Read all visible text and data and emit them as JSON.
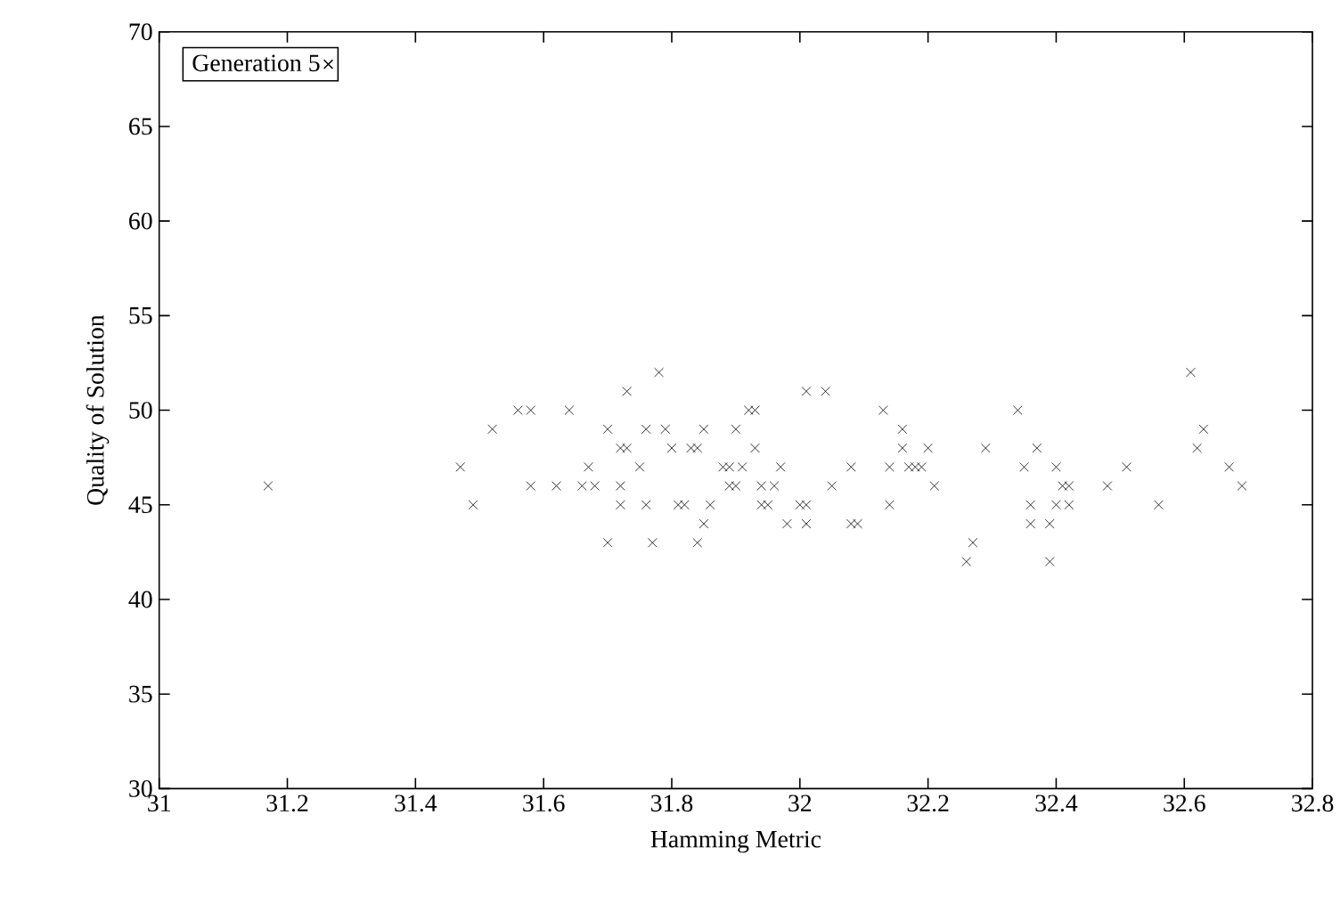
{
  "chart_data": {
    "type": "scatter",
    "xlabel": "Hamming Metric",
    "ylabel": "Quality of Solution",
    "xlim": [
      31,
      32.8
    ],
    "ylim": [
      30,
      70
    ],
    "xticks": [
      31,
      31.2,
      31.4,
      31.6,
      31.8,
      32,
      32.2,
      32.4,
      32.6,
      32.8
    ],
    "yticks": [
      30,
      35,
      40,
      45,
      50,
      55,
      60,
      65,
      70
    ],
    "legend": "top left",
    "marker": "cross",
    "grid": false,
    "series": [
      {
        "name": "Generation 5",
        "color": "#000000",
        "x": [
          31.17,
          31.47,
          31.49,
          31.52,
          31.56,
          31.58,
          31.58,
          31.62,
          31.64,
          31.66,
          31.67,
          31.68,
          31.7,
          31.7,
          31.72,
          31.72,
          31.72,
          31.73,
          31.73,
          31.75,
          31.76,
          31.76,
          31.77,
          31.78,
          31.79,
          31.8,
          31.81,
          31.82,
          31.83,
          31.84,
          31.84,
          31.85,
          31.85,
          31.86,
          31.88,
          31.89,
          31.89,
          31.9,
          31.9,
          31.91,
          31.92,
          31.93,
          31.93,
          31.94,
          31.94,
          31.95,
          31.96,
          31.97,
          31.98,
          32.0,
          32.01,
          32.01,
          32.01,
          32.04,
          32.05,
          32.08,
          32.08,
          32.09,
          32.13,
          32.14,
          32.14,
          32.16,
          32.16,
          32.17,
          32.18,
          32.19,
          32.2,
          32.21,
          32.26,
          32.27,
          32.29,
          32.34,
          32.35,
          32.36,
          32.36,
          32.37,
          32.39,
          32.39,
          32.4,
          32.4,
          32.41,
          32.42,
          32.42,
          32.48,
          32.51,
          32.56,
          32.61,
          32.62,
          32.63,
          32.67,
          32.69
        ],
        "values": [
          46,
          47,
          45,
          49,
          50,
          50,
          46,
          46,
          50,
          46,
          47,
          46,
          49,
          43,
          45,
          46,
          48,
          48,
          51,
          47,
          45,
          49,
          43,
          52,
          49,
          48,
          45,
          45,
          48,
          48,
          43,
          44,
          49,
          45,
          47,
          47,
          46,
          46,
          49,
          47,
          50,
          50,
          48,
          46,
          45,
          45,
          46,
          47,
          44,
          45,
          51,
          44,
          45,
          51,
          46,
          47,
          44,
          44,
          50,
          45,
          47,
          49,
          48,
          47,
          47,
          47,
          48,
          46,
          42,
          43,
          48,
          50,
          47,
          45,
          44,
          48,
          42,
          44,
          47,
          45,
          46,
          46,
          45,
          46,
          47,
          45,
          52,
          48,
          49,
          47,
          46
        ]
      }
    ]
  }
}
